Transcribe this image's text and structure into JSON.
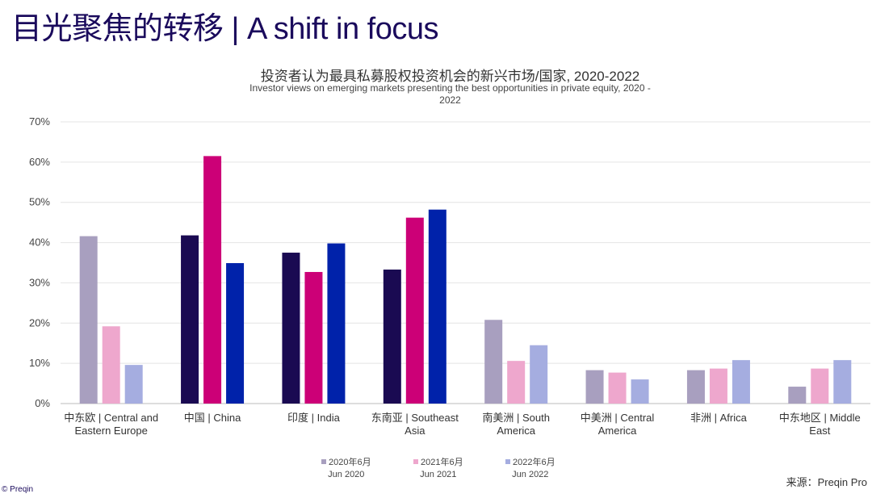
{
  "header": {
    "title": "目光聚焦的转移 | A shift in focus"
  },
  "colors": {
    "title": "#1a0a5c",
    "highlight": [
      "#1a0a52",
      "#cc0077",
      "#0022aa"
    ],
    "faded": [
      "#a89fbf",
      "#eea7cd",
      "#a5ade0"
    ]
  },
  "chart_data": {
    "type": "bar",
    "title": "投资者认为最具私募股权投资机会的新兴市场/国家, 2020-2022",
    "subtitle": "Investor views on emerging markets presenting the best opportunities in private equity, 2020 - 2022",
    "ylim": [
      0,
      70
    ],
    "yticks": [
      "0%",
      "10%",
      "20%",
      "30%",
      "40%",
      "50%",
      "60%",
      "70%"
    ],
    "ytick_values": [
      0,
      10,
      20,
      30,
      40,
      50,
      60,
      70
    ],
    "grid": true,
    "legend_position": "bottom",
    "categories": [
      [
        "中东欧 | Central and",
        "Eastern Europe"
      ],
      [
        "中国 | China"
      ],
      [
        "印度 | India"
      ],
      [
        "东南亚 | Southeast",
        "Asia"
      ],
      [
        "南美洲 | South",
        "America"
      ],
      [
        "中美洲 | Central",
        "America"
      ],
      [
        "非洲 | Africa"
      ],
      [
        "中东地区 | Middle",
        "East"
      ]
    ],
    "highlighted_categories": [
      1,
      2,
      3
    ],
    "series": [
      {
        "name": "2020年6月 Jun 2020",
        "values": [
          41.6,
          41.8,
          37.5,
          33.3,
          20.8,
          8.3,
          8.3,
          4.2
        ]
      },
      {
        "name": "2021年6月 Jun 2021",
        "values": [
          19.2,
          61.5,
          32.7,
          46.2,
          10.6,
          7.7,
          8.7,
          8.7
        ]
      },
      {
        "name": "2022年6月 Jun 2022",
        "values": [
          9.6,
          34.9,
          39.8,
          48.2,
          14.5,
          6.0,
          10.8,
          10.8
        ]
      }
    ]
  },
  "legend": {
    "items": [
      {
        "line1": "2020年6月",
        "line2": "Jun 2020"
      },
      {
        "line1": "2021年6月",
        "line2": "Jun 2021"
      },
      {
        "line1": "2022年6月",
        "line2": "Jun 2022"
      }
    ]
  },
  "source": "来源：Preqin Pro",
  "footer": "© Preqin"
}
